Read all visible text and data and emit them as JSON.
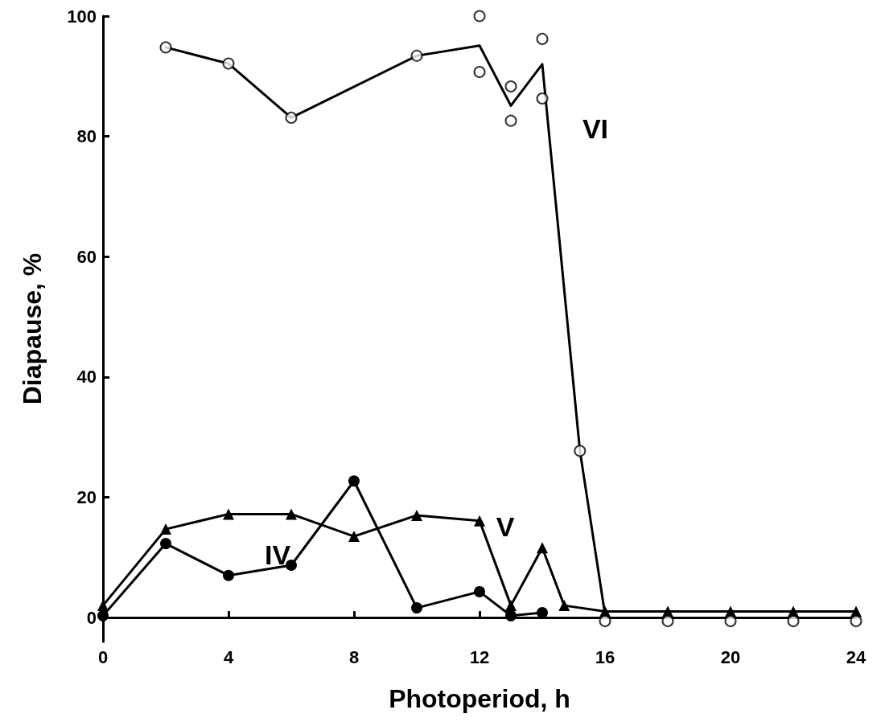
{
  "chart_data": {
    "type": "line",
    "xlabel": "Photoperiod, h",
    "ylabel": "Diapause, %",
    "xlim": [
      0,
      24
    ],
    "xticks": [
      0,
      4,
      8,
      12,
      16,
      20,
      24
    ],
    "ylim": [
      -4,
      100
    ],
    "yticks": [
      0,
      20,
      40,
      60,
      80,
      100
    ],
    "grid": false,
    "series": [
      {
        "color": "#000000",
        "marker": "circle",
        "x": [
          0,
          2,
          4,
          6,
          8,
          10,
          12,
          13,
          14
        ],
        "values": [
          0.3,
          12.3,
          7,
          8.7,
          22.7,
          1.6,
          4.3,
          0.3,
          0.8
        ]
      },
      {
        "color": "#000000",
        "marker": "triangle",
        "x": [
          0,
          2,
          4,
          6,
          8,
          10,
          12,
          13,
          14,
          14.7,
          16,
          18,
          20,
          22,
          24
        ],
        "values": [
          2,
          14.7,
          17.2,
          17.2,
          13.5,
          17,
          16.1,
          2,
          11.6,
          2,
          1,
          1,
          1,
          1,
          1
        ]
      },
      {
        "color": "#000000",
        "marker": "none",
        "x": [
          2,
          4,
          6,
          10,
          12,
          13,
          14,
          15.2,
          16
        ],
        "values": [
          94.8,
          92.1,
          83.1,
          93.4,
          95.1,
          85.1,
          92,
          27.7,
          0.5
        ]
      },
      {
        "type": "scatter",
        "color": "#000000",
        "marker": "circle",
        "x": [
          2,
          4,
          6,
          10,
          12,
          12,
          13,
          13,
          14,
          14,
          15.2,
          16,
          18,
          20,
          22,
          24
        ],
        "values": [
          94.8,
          92.1,
          83.1,
          93.4,
          100,
          90.7,
          88.3,
          82.6,
          96.2,
          86.3,
          27.7,
          -0.6,
          -0.6,
          -0.6,
          -0.6,
          -0.6
        ]
      }
    ],
    "annotations": [
      "IV",
      "V",
      "VI"
    ]
  }
}
